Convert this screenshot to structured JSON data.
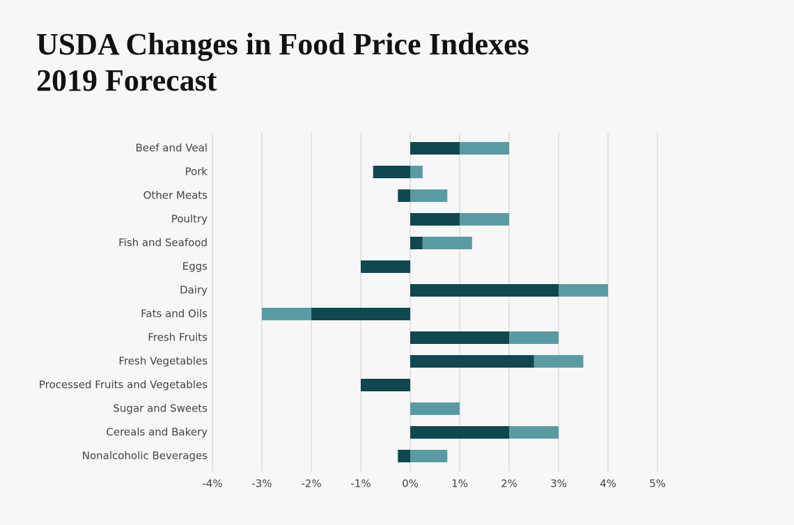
{
  "chart_data": {
    "type": "stacked-bar-horizontal",
    "title": "USDA Changes in Food Price Indexes",
    "subtitle": "2019 Forecast",
    "categories": [
      "Beef and Veal",
      "Pork",
      "Other Meats",
      "Poultry",
      "Fish and Seafood",
      "Eggs",
      "Dairy",
      "Fats and Oils",
      "Fresh Fruits",
      "Fresh Vegetables",
      "Processed Fruits and Vegetables",
      "Sugar and Sweets",
      "Cereals and Bakery",
      "Nonalcoholic Beverages"
    ],
    "series": [
      {
        "color": "#10484f",
        "values": [
          1,
          -0.75,
          -0.25,
          1,
          0.25,
          -1,
          3,
          -2,
          2,
          2.5,
          -1,
          0,
          2,
          -0.25
        ]
      },
      {
        "color": "#5a9ba3",
        "values": [
          1,
          0.25,
          0.75,
          1,
          1,
          0,
          1,
          -1,
          1,
          1,
          0,
          1,
          1,
          0.75
        ]
      }
    ],
    "xlim": [
      -4,
      5
    ],
    "xticks": [
      {
        "value": -4,
        "label": "-4%"
      },
      {
        "value": -3,
        "label": "-3%"
      },
      {
        "value": -2,
        "label": "-2%"
      },
      {
        "value": -1,
        "label": "-1%"
      },
      {
        "value": 0,
        "label": "0%"
      },
      {
        "value": 1,
        "label": "1%"
      },
      {
        "value": 2,
        "label": "2%"
      },
      {
        "value": 3,
        "label": "3%"
      },
      {
        "value": 4,
        "label": "4%"
      },
      {
        "value": 5,
        "label": "5%"
      }
    ],
    "grid": true
  }
}
